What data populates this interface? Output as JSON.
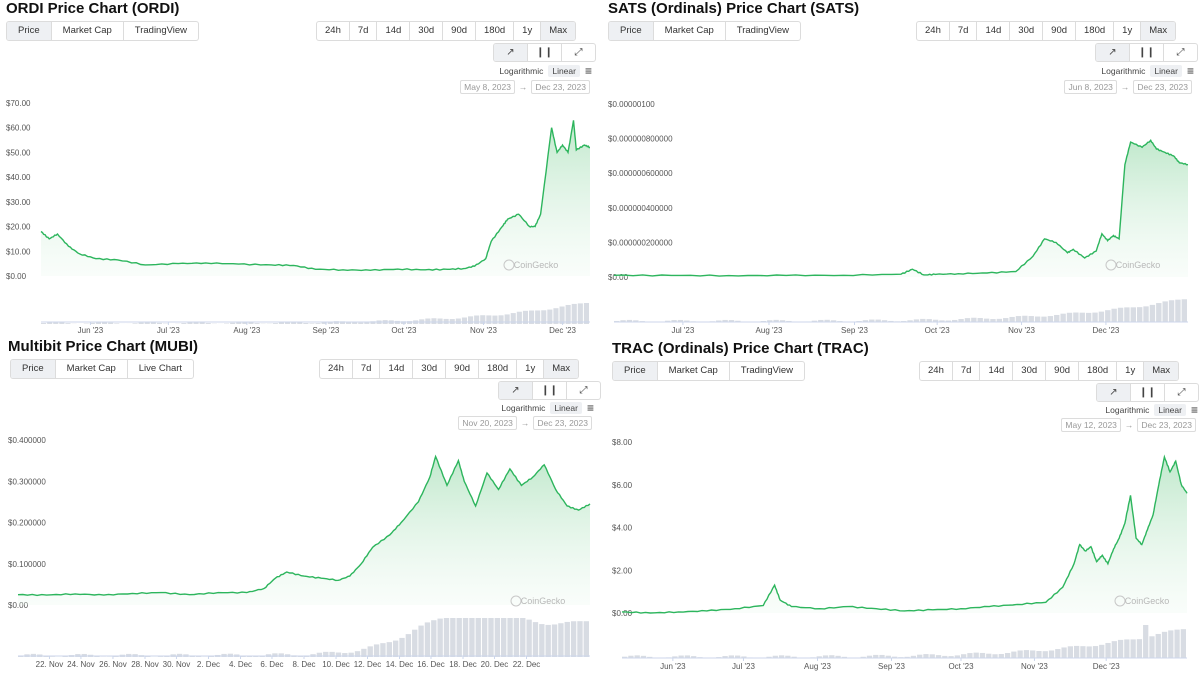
{
  "panels": [
    {
      "title": "ORDI Price Chart (ORDI)",
      "tabs": [
        "Price",
        "Market Cap",
        "TradingView"
      ],
      "ranges": [
        "24h",
        "7d",
        "14d",
        "30d",
        "90d",
        "180d",
        "1y",
        "Max"
      ],
      "scale": {
        "log": "Logarithmic",
        "linear": "Linear"
      },
      "date_from": "May 8, 2023",
      "date_to": "Dec 23, 2023",
      "watermark": "CoinGecko"
    },
    {
      "title": "SATS (Ordinals) Price Chart (SATS)",
      "tabs": [
        "Price",
        "Market Cap",
        "TradingView"
      ],
      "ranges": [
        "24h",
        "7d",
        "14d",
        "30d",
        "90d",
        "180d",
        "1y",
        "Max"
      ],
      "scale": {
        "log": "Logarithmic",
        "linear": "Linear"
      },
      "date_from": "Jun 8, 2023",
      "date_to": "Dec 23, 2023",
      "watermark": "CoinGecko"
    },
    {
      "title": "Multibit Price Chart (MUBI)",
      "tabs": [
        "Price",
        "Market Cap",
        "Live Chart"
      ],
      "ranges": [
        "24h",
        "7d",
        "14d",
        "30d",
        "90d",
        "180d",
        "1y",
        "Max"
      ],
      "scale": {
        "log": "Logarithmic",
        "linear": "Linear"
      },
      "date_from": "Nov 20, 2023",
      "date_to": "Dec 23, 2023",
      "watermark": "CoinGecko"
    },
    {
      "title": "TRAC (Ordinals) Price Chart (TRAC)",
      "tabs": [
        "Price",
        "Market Cap",
        "TradingView"
      ],
      "ranges": [
        "24h",
        "7d",
        "14d",
        "30d",
        "90d",
        "180d",
        "1y",
        "Max"
      ],
      "scale": {
        "log": "Logarithmic",
        "linear": "Linear"
      },
      "date_from": "May 12, 2023",
      "date_to": "Dec 23, 2023",
      "watermark": "CoinGecko"
    }
  ],
  "chart_data": [
    {
      "type": "area",
      "title": "ORDI Price Chart (ORDI)",
      "y_ticks": [
        "$0.00",
        "$10.00",
        "$20.00",
        "$30.00",
        "$40.00",
        "$50.00",
        "$60.00",
        "$70.00"
      ],
      "ylim": [
        0,
        70
      ],
      "x_ticks": [
        "Jun '23",
        "Jul '23",
        "Aug '23",
        "Sep '23",
        "Oct '23",
        "Nov '23",
        "Dec '23"
      ],
      "x_tick_pos": [
        0.09,
        0.232,
        0.375,
        0.519,
        0.661,
        0.806,
        0.95
      ],
      "series": [
        {
          "x": [
            0,
            0.015,
            0.03,
            0.05,
            0.07,
            0.1,
            0.14,
            0.19,
            0.25,
            0.3,
            0.36,
            0.42,
            0.46,
            0.5,
            0.55,
            0.6,
            0.65,
            0.7,
            0.74,
            0.77,
            0.79,
            0.81,
            0.82,
            0.84,
            0.85,
            0.87,
            0.89,
            0.9,
            0.91,
            0.93,
            0.94,
            0.95,
            0.96,
            0.97,
            0.975,
            0.99,
            1.0
          ],
          "values": [
            18,
            15,
            17,
            12,
            9,
            7,
            6.5,
            4.5,
            5,
            5.3,
            4.8,
            4.5,
            4.3,
            2.7,
            2.5,
            2.3,
            2.8,
            2.5,
            2.7,
            3,
            4,
            7,
            14,
            20,
            23,
            25,
            20,
            20,
            25,
            60,
            50,
            53,
            50,
            63,
            51,
            53,
            52
          ]
        }
      ],
      "volume": true
    },
    {
      "type": "area",
      "title": "SATS (Ordinals) Price Chart (SATS)",
      "y_ticks": [
        "$0.00",
        "$0.000000200000",
        "$0.000000400000",
        "$0.000000600000",
        "$0.000000800000",
        "$0.00000100"
      ],
      "ylim": [
        0,
        1e-06
      ],
      "x_ticks": [
        "Jul '23",
        "Aug '23",
        "Sep '23",
        "Oct '23",
        "Nov '23",
        "Dec '23"
      ],
      "x_tick_pos": [
        0.12,
        0.27,
        0.419,
        0.563,
        0.71,
        0.857
      ],
      "series": [
        {
          "x": [
            0,
            0.1,
            0.2,
            0.3,
            0.4,
            0.5,
            0.52,
            0.54,
            0.56,
            0.6,
            0.65,
            0.7,
            0.73,
            0.75,
            0.77,
            0.79,
            0.8,
            0.82,
            0.84,
            0.85,
            0.86,
            0.87,
            0.88,
            0.89,
            0.9,
            0.92,
            0.935,
            0.945,
            0.96,
            0.975,
            0.985,
            1.0
          ],
          "values": [
            1e-08,
            9e-09,
            8e-09,
            9e-09,
            1e-08,
            1.6e-08,
            4.5e-08,
            1.2e-08,
            1.5e-08,
            1.9e-08,
            2.3e-08,
            3.2e-08,
            1.2e-07,
            2.2e-07,
            2e-07,
            1.4e-07,
            1.6e-07,
            1.1e-07,
            1.5e-07,
            2.5e-07,
            2.1e-07,
            2.4e-07,
            2.2e-07,
            6.5e-07,
            7.8e-07,
            7.5e-07,
            7.9e-07,
            7.4e-07,
            7.2e-07,
            7e-07,
            6.6e-07,
            6.5e-07
          ]
        }
      ],
      "volume": true
    },
    {
      "type": "area",
      "title": "Multibit Price Chart (MUBI)",
      "y_ticks": [
        "$0.00",
        "$0.100000",
        "$0.200000",
        "$0.300000",
        "$0.400000"
      ],
      "ylim": [
        0,
        0.4
      ],
      "x_ticks": [
        "22. Nov",
        "24. Nov",
        "26. Nov",
        "28. Nov",
        "30. Nov",
        "2. Dec",
        "4. Dec",
        "6. Dec",
        "8. Dec",
        "10. Dec",
        "12. Dec",
        "14. Dec",
        "16. Dec",
        "18. Dec",
        "20. Dec",
        "22. Dec"
      ],
      "x_tick_pos": [
        0.055,
        0.11,
        0.166,
        0.222,
        0.277,
        0.333,
        0.389,
        0.444,
        0.5,
        0.556,
        0.611,
        0.667,
        0.722,
        0.778,
        0.833,
        0.889
      ],
      "series": [
        {
          "x": [
            0,
            0.05,
            0.1,
            0.15,
            0.2,
            0.25,
            0.3,
            0.35,
            0.4,
            0.43,
            0.45,
            0.47,
            0.5,
            0.53,
            0.56,
            0.58,
            0.6,
            0.62,
            0.65,
            0.67,
            0.7,
            0.72,
            0.73,
            0.75,
            0.77,
            0.78,
            0.8,
            0.82,
            0.84,
            0.86,
            0.88,
            0.9,
            0.92,
            0.94,
            0.96,
            0.98,
            1.0
          ],
          "values": [
            0.025,
            0.024,
            0.027,
            0.024,
            0.028,
            0.03,
            0.025,
            0.03,
            0.03,
            0.04,
            0.065,
            0.08,
            0.07,
            0.065,
            0.06,
            0.07,
            0.1,
            0.14,
            0.17,
            0.2,
            0.25,
            0.31,
            0.36,
            0.29,
            0.35,
            0.3,
            0.24,
            0.32,
            0.28,
            0.33,
            0.29,
            0.31,
            0.34,
            0.28,
            0.24,
            0.23,
            0.245
          ]
        }
      ],
      "volume": true
    },
    {
      "type": "area",
      "title": "TRAC (Ordinals) Price Chart (TRAC)",
      "y_ticks": [
        "$0.00",
        "$2.00",
        "$4.00",
        "$6.00",
        "$8.00"
      ],
      "ylim": [
        0,
        8
      ],
      "x_ticks": [
        "Jun '23",
        "Jul '23",
        "Aug '23",
        "Sep '23",
        "Oct '23",
        "Nov '23",
        "Dec '23"
      ],
      "x_tick_pos": [
        0.09,
        0.215,
        0.346,
        0.477,
        0.6,
        0.73,
        0.857
      ],
      "series": [
        {
          "x": [
            0,
            0.05,
            0.1,
            0.15,
            0.2,
            0.25,
            0.27,
            0.28,
            0.3,
            0.35,
            0.4,
            0.45,
            0.5,
            0.55,
            0.6,
            0.65,
            0.7,
            0.75,
            0.78,
            0.8,
            0.81,
            0.82,
            0.83,
            0.84,
            0.85,
            0.86,
            0.87,
            0.88,
            0.89,
            0.9,
            0.91,
            0.92,
            0.93,
            0.94,
            0.95,
            0.96,
            0.97,
            0.98,
            0.99,
            1.0
          ],
          "values": [
            0.05,
            0.0,
            0.05,
            0.1,
            0.2,
            0.35,
            1.3,
            0.6,
            0.3,
            0.2,
            0.3,
            0.2,
            0.1,
            0.15,
            0.2,
            0.3,
            0.4,
            0.5,
            1.2,
            2.3,
            3.2,
            2.9,
            3.1,
            2.4,
            2.7,
            2.3,
            3.0,
            3.5,
            4.2,
            5.5,
            3.5,
            3.2,
            3.9,
            4.6,
            6.0,
            7.3,
            6.6,
            7.1,
            6.0,
            5.6
          ]
        }
      ],
      "volume": true
    }
  ]
}
